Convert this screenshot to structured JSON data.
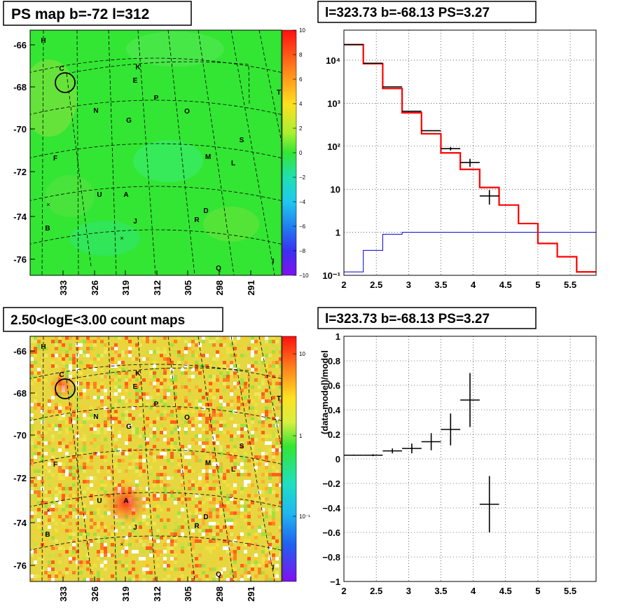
{
  "titles": {
    "top_left": "PS map b=-72 l=312",
    "top_right": "l=323.73 b=-68.13 PS=3.27",
    "bottom_left": "2.50<logE<3.00 count maps",
    "bottom_right": "l=323.73 b=-68.13 PS=3.27"
  },
  "map_ticks": {
    "lat": [
      "-66",
      "-68",
      "-70",
      "-72",
      "-74",
      "-76"
    ],
    "lon": [
      "333",
      "326",
      "319",
      "312",
      "305",
      "298",
      "291"
    ]
  },
  "source_labels": [
    "H",
    "C",
    "K",
    "E",
    "P",
    "O",
    "T",
    "N",
    "G",
    "S",
    "M",
    "L",
    "F",
    "U",
    "A",
    "D",
    "R",
    "J",
    "B",
    "Q",
    "I"
  ],
  "colorbars": {
    "ps_map": {
      "labels": [
        "10",
        "8",
        "6",
        "4",
        "2",
        "0",
        "−2",
        "−4",
        "−6",
        "−8",
        "−10"
      ],
      "range": [
        -10,
        10
      ]
    },
    "count_map": {
      "labels": [
        "10",
        "1",
        "10⁻¹"
      ],
      "scale": "log"
    }
  },
  "colors": {
    "data": "#000000",
    "model": "#ff0000",
    "component": "#0000cc",
    "map_background_ps": "#33e633",
    "map_background_counts": "#e6d640"
  },
  "chart_data": [
    {
      "type": "heatmap",
      "title": "PS map b=-72 l=312",
      "ylim": [
        -76.7,
        -65.3
      ],
      "xlabel": "",
      "ylabel": ""
    },
    {
      "type": "line",
      "title": "l=323.73 b=-68.13 PS=3.27",
      "xlabel": "",
      "ylabel": "",
      "xlim": [
        2,
        5.9
      ],
      "ylim": [
        0.1,
        50000
      ],
      "yscale": "log",
      "grid": true,
      "x_ticks": [
        "2",
        "2.5",
        "3",
        "3.5",
        "4",
        "4.5",
        "5",
        "5.5"
      ],
      "y_ticks": [
        "10⁻¹",
        "1",
        "10",
        "10²",
        "10³",
        "10⁴"
      ],
      "bin_edges": [
        2.0,
        2.3,
        2.6,
        2.9,
        3.2,
        3.5,
        3.8,
        4.1,
        4.4,
        4.7,
        5.0,
        5.3,
        5.6,
        5.9
      ],
      "series": [
        {
          "values": [
            23000,
            8500,
            2400,
            650,
            230,
            88,
            42,
            7,
            null,
            null,
            null,
            null,
            null
          ]
        },
        {
          "values": [
            23000,
            8300,
            2200,
            600,
            195,
            70,
            29,
            11,
            4.3,
            1.6,
            0.55,
            0.27,
            0.12
          ]
        },
        {
          "values": [
            0.12,
            0.38,
            0.9,
            1.0,
            1.0,
            1.0,
            1.0,
            1.0,
            1.0,
            1.0,
            1.0,
            1.0,
            1.0
          ]
        }
      ],
      "errors": [
        0,
        0,
        0,
        0,
        0,
        8,
        9,
        2.6,
        null,
        null,
        null,
        null,
        null
      ]
    },
    {
      "type": "scatter",
      "title": "l=323.73 b=-68.13 PS=3.27",
      "xlabel": "",
      "ylabel": "(data-model)/model",
      "xlim": [
        2,
        5.9
      ],
      "ylim": [
        -1,
        1
      ],
      "grid": true,
      "x_ticks": [
        "2",
        "2.5",
        "3",
        "3.5",
        "4",
        "4.5",
        "5",
        "5.5"
      ],
      "y_ticks": [
        "−1",
        "−0.8",
        "−0.6",
        "−0.4",
        "−0.2",
        "0",
        "0.2",
        "0.4",
        "0.6",
        "0.8",
        "1"
      ],
      "x": [
        2.15,
        2.45,
        2.75,
        3.05,
        3.35,
        3.65,
        3.95,
        4.25
      ],
      "x_err": [
        0.15,
        0.15,
        0.15,
        0.15,
        0.15,
        0.15,
        0.15,
        0.15
      ],
      "y": [
        0.03,
        0.03,
        0.065,
        0.085,
        0.14,
        0.24,
        0.48,
        -0.37
      ],
      "y_err": [
        0.005,
        0.008,
        0.02,
        0.04,
        0.07,
        0.13,
        0.22,
        0.23
      ]
    }
  ]
}
